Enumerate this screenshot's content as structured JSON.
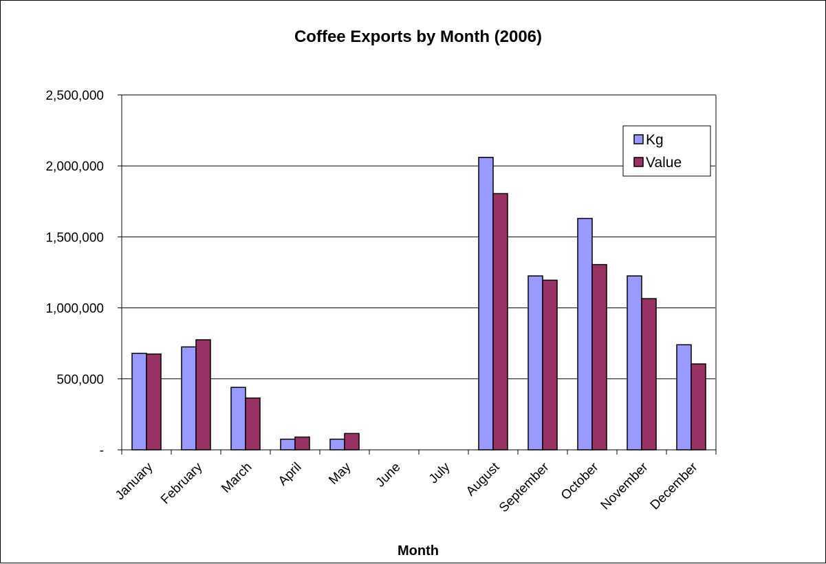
{
  "chart_data": {
    "type": "bar",
    "title": "Coffee Exports by Month (2006)",
    "xlabel": "Month",
    "ylabel": "",
    "categories": [
      "January",
      "February",
      "March",
      "April",
      "May",
      "June",
      "July",
      "August",
      "September",
      "October",
      "November",
      "December"
    ],
    "series": [
      {
        "name": "Kg",
        "color": "#9999ff",
        "values": [
          680000,
          725000,
          440000,
          75000,
          75000,
          0,
          0,
          2060000,
          1225000,
          1630000,
          1225000,
          740000
        ]
      },
      {
        "name": "Value",
        "color": "#993366",
        "values": [
          675000,
          775000,
          365000,
          90000,
          115000,
          0,
          0,
          1805000,
          1195000,
          1305000,
          1065000,
          605000
        ]
      }
    ],
    "ylim": [
      0,
      2500000
    ],
    "yticks": [
      0,
      500000,
      1000000,
      1500000,
      2000000,
      2500000
    ],
    "ytick_labels": [
      "-",
      "500,000",
      "1,000,000",
      "1,500,000",
      "2,000,000",
      "2,500,000"
    ],
    "grid": true,
    "legend_position": "top-right",
    "plot_background": "#ffffff"
  }
}
